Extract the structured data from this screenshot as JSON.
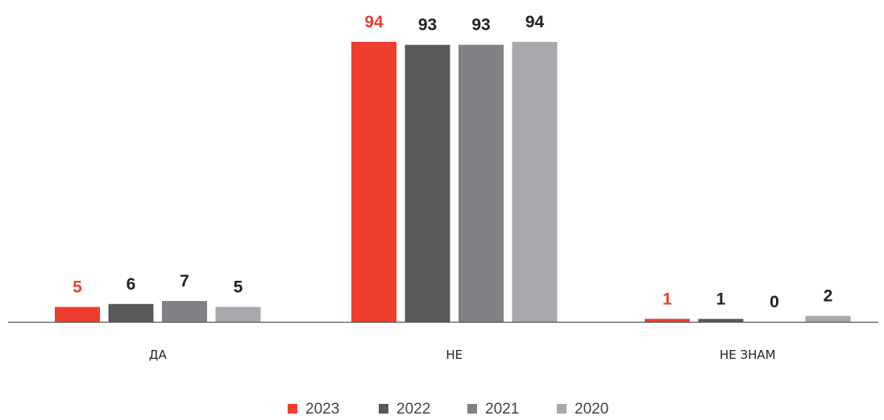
{
  "chart_data": {
    "type": "bar",
    "categories": [
      "ДА",
      "НЕ",
      "НЕ ЗНАМ"
    ],
    "series": [
      {
        "name": "2023",
        "color": "#ef3e2d",
        "values": [
          5,
          94,
          1
        ]
      },
      {
        "name": "2022",
        "color": "#58595b",
        "values": [
          6,
          93,
          1
        ]
      },
      {
        "name": "2021",
        "color": "#808184",
        "values": [
          7,
          93,
          0
        ]
      },
      {
        "name": "2020",
        "color": "#a7a9ac",
        "values": [
          5,
          94,
          2
        ]
      }
    ],
    "value_label_colors": [
      "#ef3e2d",
      "#222222",
      "#222222",
      "#222222"
    ],
    "ylim": [
      0,
      94
    ],
    "grid": false,
    "legend_position": "bottom-center"
  }
}
